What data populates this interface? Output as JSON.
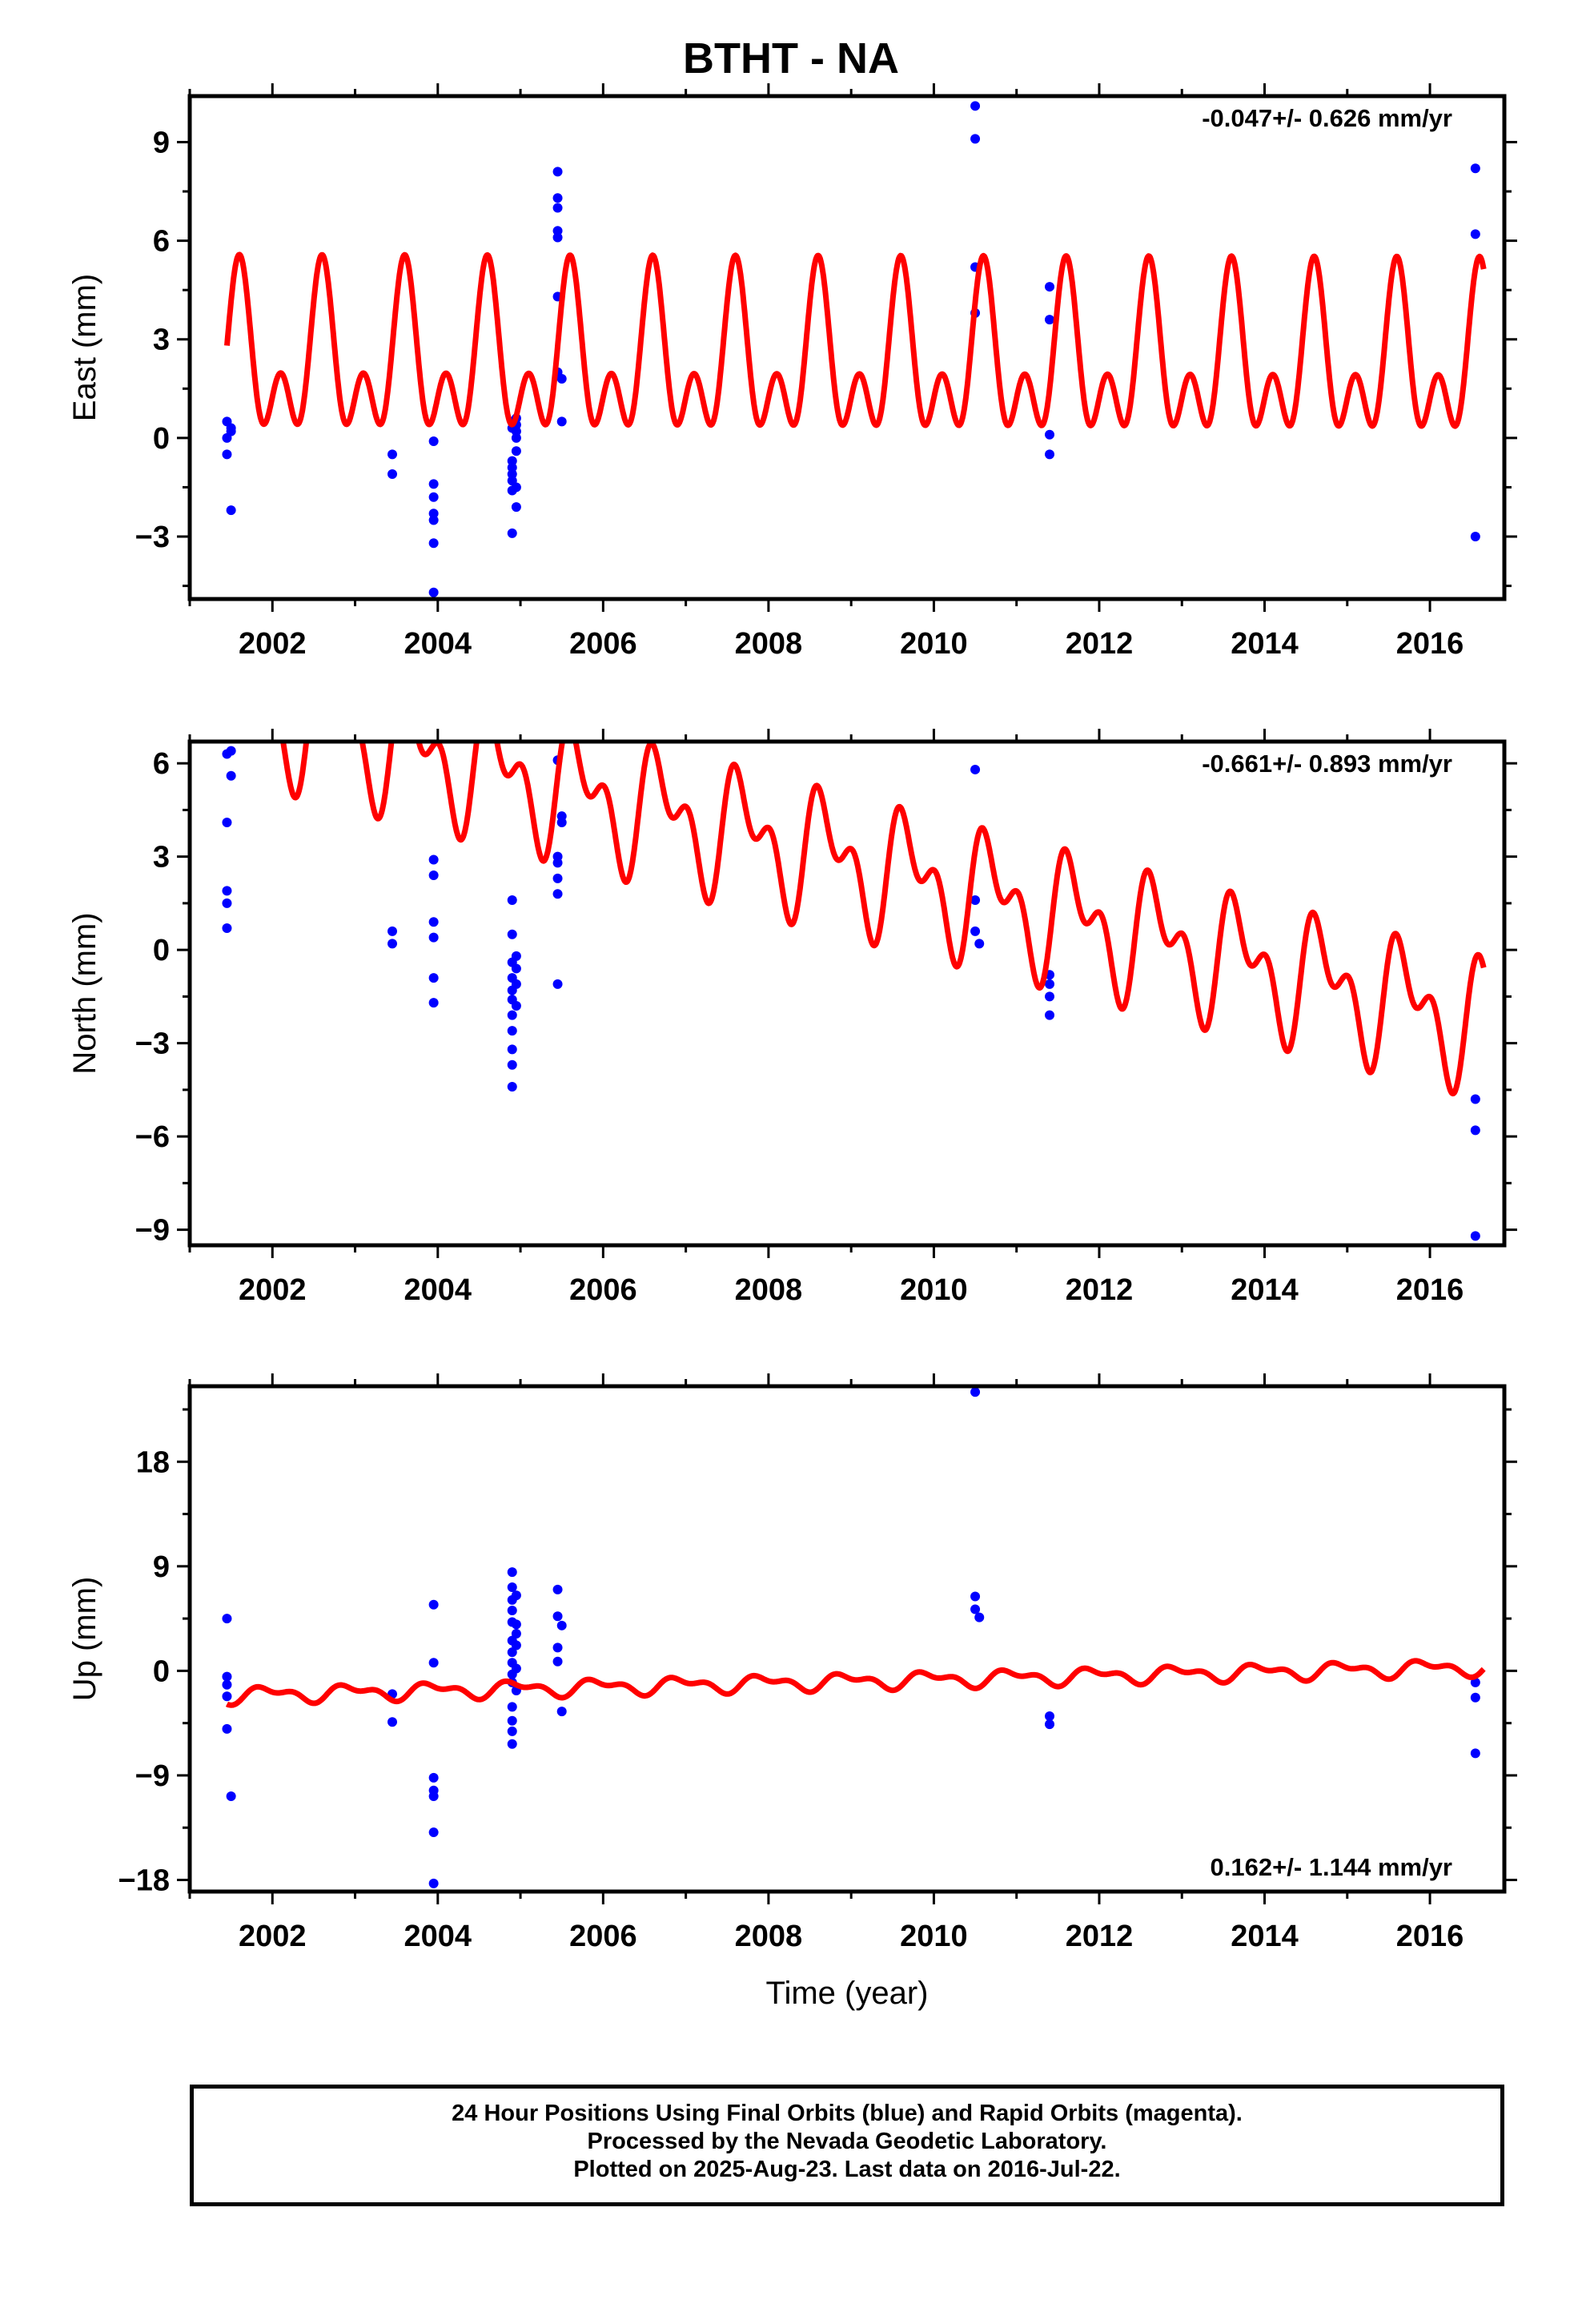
{
  "title": "BTHT - NA",
  "colors": {
    "model": "#ff0000",
    "final_orbits": "#0000ff",
    "frame": "#000000"
  },
  "footer": {
    "line1": "24 Hour Positions Using Final Orbits (blue) and Rapid Orbits (magenta).",
    "line2": "Processed by the Nevada Geodetic Laboratory.",
    "line3": "Plotted on 2025-Aug-23. Last data on 2016-Jul-22."
  },
  "chart_data": [
    {
      "type": "scatter",
      "ylabel": "East (mm)",
      "xlabel": "",
      "rate": "-0.047+/- 0.626 mm/yr",
      "xlim": [
        2001.0,
        2016.9
      ],
      "ylim": [
        -4.9,
        10.4
      ],
      "yticks": [
        -3,
        0,
        3,
        6,
        9
      ],
      "xticks": [
        2002,
        2004,
        2006,
        2008,
        2010,
        2012,
        2014,
        2016
      ],
      "model": {
        "start": 2001.45,
        "end": 2016.65,
        "offset": 2.2,
        "trend": -0.004,
        "a1": 1.8,
        "p1": 0.65,
        "a2": 1.55,
        "p2": 0.05
      },
      "points": [
        [
          2001.45,
          0.5
        ],
        [
          2001.45,
          0.0
        ],
        [
          2001.45,
          -0.5
        ],
        [
          2001.5,
          0.3
        ],
        [
          2001.5,
          0.2
        ],
        [
          2001.5,
          -2.2
        ],
        [
          2003.45,
          -0.5
        ],
        [
          2003.45,
          -1.1
        ],
        [
          2003.95,
          -0.1
        ],
        [
          2003.95,
          -1.4
        ],
        [
          2003.95,
          -1.8
        ],
        [
          2003.95,
          -2.3
        ],
        [
          2003.95,
          -2.5
        ],
        [
          2003.95,
          -3.2
        ],
        [
          2003.95,
          -4.7
        ],
        [
          2004.9,
          0.5
        ],
        [
          2004.9,
          0.3
        ],
        [
          2004.9,
          -0.7
        ],
        [
          2004.9,
          -0.9
        ],
        [
          2004.9,
          -1.1
        ],
        [
          2004.9,
          -1.3
        ],
        [
          2004.9,
          -1.6
        ],
        [
          2004.9,
          -2.9
        ],
        [
          2004.95,
          0.6
        ],
        [
          2004.95,
          0.4
        ],
        [
          2004.95,
          0.2
        ],
        [
          2004.95,
          0.0
        ],
        [
          2004.95,
          -0.4
        ],
        [
          2004.95,
          -1.5
        ],
        [
          2004.95,
          -2.1
        ],
        [
          2005.45,
          8.1
        ],
        [
          2005.45,
          7.3
        ],
        [
          2005.45,
          7.0
        ],
        [
          2005.45,
          6.3
        ],
        [
          2005.45,
          6.1
        ],
        [
          2005.45,
          4.3
        ],
        [
          2005.45,
          2.0
        ],
        [
          2005.5,
          1.8
        ],
        [
          2005.5,
          0.5
        ],
        [
          2010.5,
          10.1
        ],
        [
          2010.5,
          9.1
        ],
        [
          2010.5,
          5.2
        ],
        [
          2010.5,
          3.8
        ],
        [
          2011.4,
          4.6
        ],
        [
          2011.4,
          3.6
        ],
        [
          2011.4,
          0.1
        ],
        [
          2011.4,
          -0.5
        ],
        [
          2016.55,
          8.2
        ],
        [
          2016.55,
          6.2
        ],
        [
          2016.55,
          -3.0
        ]
      ]
    },
    {
      "type": "scatter",
      "ylabel": "North (mm)",
      "xlabel": "",
      "rate": "-0.661+/- 0.893 mm/yr",
      "xlim": [
        2001.0,
        2016.9
      ],
      "ylim": [
        -9.5,
        6.7
      ],
      "yticks": [
        -9,
        -6,
        -3,
        0,
        3,
        6
      ],
      "xticks": [
        2002,
        2004,
        2006,
        2008,
        2010,
        2012,
        2014,
        2016
      ],
      "model": {
        "start": 2001.45,
        "end": 2016.65,
        "offset": 2.8,
        "trend": -0.68,
        "a1": 1.55,
        "p1": 0.55,
        "a2": 1.15,
        "p2": 0.15
      },
      "points": [
        [
          2001.45,
          6.3
        ],
        [
          2001.5,
          6.4
        ],
        [
          2001.5,
          5.6
        ],
        [
          2001.45,
          4.1
        ],
        [
          2001.45,
          1.9
        ],
        [
          2001.45,
          1.5
        ],
        [
          2001.45,
          0.7
        ],
        [
          2003.45,
          0.6
        ],
        [
          2003.45,
          0.2
        ],
        [
          2003.95,
          2.9
        ],
        [
          2003.95,
          2.4
        ],
        [
          2003.95,
          0.9
        ],
        [
          2003.95,
          0.4
        ],
        [
          2003.95,
          -0.9
        ],
        [
          2003.95,
          -1.7
        ],
        [
          2004.9,
          1.6
        ],
        [
          2004.9,
          0.5
        ],
        [
          2004.9,
          -0.4
        ],
        [
          2004.9,
          -0.9
        ],
        [
          2004.9,
          -1.3
        ],
        [
          2004.9,
          -1.6
        ],
        [
          2004.9,
          -2.1
        ],
        [
          2004.9,
          -2.6
        ],
        [
          2004.9,
          -3.2
        ],
        [
          2004.9,
          -3.7
        ],
        [
          2004.9,
          -4.4
        ],
        [
          2004.95,
          -0.2
        ],
        [
          2004.95,
          -0.6
        ],
        [
          2004.95,
          -1.1
        ],
        [
          2004.95,
          -1.8
        ],
        [
          2005.45,
          6.1
        ],
        [
          2005.5,
          4.3
        ],
        [
          2005.5,
          4.1
        ],
        [
          2005.45,
          3.0
        ],
        [
          2005.45,
          2.8
        ],
        [
          2005.45,
          2.3
        ],
        [
          2005.45,
          1.8
        ],
        [
          2005.45,
          -1.1
        ],
        [
          2010.5,
          5.8
        ],
        [
          2010.5,
          1.6
        ],
        [
          2010.5,
          0.6
        ],
        [
          2010.55,
          0.2
        ],
        [
          2011.4,
          -0.8
        ],
        [
          2011.4,
          -1.1
        ],
        [
          2011.4,
          -1.5
        ],
        [
          2011.4,
          -2.1
        ],
        [
          2016.55,
          -4.8
        ],
        [
          2016.55,
          -5.8
        ],
        [
          2016.55,
          -9.2
        ]
      ]
    },
    {
      "type": "scatter",
      "ylabel": "Up (mm)",
      "xlabel": "Time (year)",
      "rate": "0.162+/- 1.144 mm/yr",
      "xlim": [
        2001.0,
        2016.9
      ],
      "ylim": [
        -19.0,
        24.5
      ],
      "yticks": [
        -18,
        -9,
        0,
        9,
        18
      ],
      "xticks": [
        2002,
        2004,
        2006,
        2008,
        2010,
        2012,
        2014,
        2016
      ],
      "model": {
        "start": 2001.45,
        "end": 2016.65,
        "offset": -0.9,
        "trend": 0.16,
        "a1": 0.55,
        "p1": 0.3,
        "a2": 0.35,
        "p2": 0.7
      },
      "points": [
        [
          2001.45,
          4.5
        ],
        [
          2001.45,
          -0.5
        ],
        [
          2001.45,
          -1.2
        ],
        [
          2001.45,
          -2.2
        ],
        [
          2001.45,
          -5.0
        ],
        [
          2001.5,
          -10.8
        ],
        [
          2003.45,
          -2.0
        ],
        [
          2003.45,
          -4.4
        ],
        [
          2003.95,
          5.7
        ],
        [
          2003.95,
          0.7
        ],
        [
          2003.95,
          -9.2
        ],
        [
          2003.95,
          -10.3
        ],
        [
          2003.95,
          -10.8
        ],
        [
          2003.95,
          -13.9
        ],
        [
          2003.95,
          -18.3
        ],
        [
          2004.9,
          8.5
        ],
        [
          2004.9,
          7.2
        ],
        [
          2004.9,
          6.1
        ],
        [
          2004.9,
          5.2
        ],
        [
          2004.9,
          4.2
        ],
        [
          2004.9,
          2.6
        ],
        [
          2004.9,
          1.6
        ],
        [
          2004.9,
          0.7
        ],
        [
          2004.9,
          -0.3
        ],
        [
          2004.9,
          -1.0
        ],
        [
          2004.9,
          -3.1
        ],
        [
          2004.9,
          -4.3
        ],
        [
          2004.9,
          -5.2
        ],
        [
          2004.9,
          -6.3
        ],
        [
          2004.95,
          6.5
        ],
        [
          2004.95,
          4.0
        ],
        [
          2004.95,
          3.2
        ],
        [
          2004.95,
          2.2
        ],
        [
          2004.95,
          0.2
        ],
        [
          2004.95,
          -1.7
        ],
        [
          2005.45,
          7.0
        ],
        [
          2005.45,
          4.7
        ],
        [
          2005.5,
          3.9
        ],
        [
          2005.45,
          2.0
        ],
        [
          2005.45,
          0.8
        ],
        [
          2005.5,
          -3.5
        ],
        [
          2010.5,
          24.0
        ],
        [
          2010.5,
          6.4
        ],
        [
          2010.5,
          5.3
        ],
        [
          2010.55,
          4.6
        ],
        [
          2011.4,
          -3.9
        ],
        [
          2011.4,
          -4.6
        ],
        [
          2016.55,
          -1.0
        ],
        [
          2016.55,
          -2.3
        ],
        [
          2016.55,
          -7.1
        ]
      ]
    }
  ]
}
